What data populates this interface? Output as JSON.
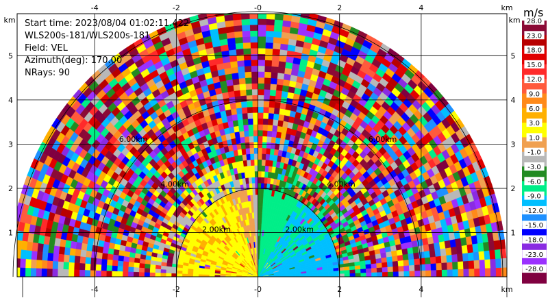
{
  "info": {
    "start_time": "Start time: 2023/08/04 01:02:11.422",
    "instrument": "WLS200s-181/WLS200s-181",
    "field": "Field: VEL",
    "azimuth": "Azimuth(deg): 170.00",
    "nrays": "NRays: 90"
  },
  "axes": {
    "x_unit": "km",
    "y_unit": "km",
    "x_ticks": [
      "-4",
      "-2",
      "-0",
      "2",
      "4"
    ],
    "x_tick_values": [
      -4,
      -2,
      0,
      2,
      4
    ],
    "y_ticks": [
      "1",
      "2",
      "3",
      "4",
      "5"
    ],
    "y_tick_values": [
      1,
      2,
      3,
      4,
      5
    ],
    "xlim": [
      -5.9,
      6.1
    ],
    "ylim": [
      0,
      5.95
    ],
    "grid": true
  },
  "range_rings": {
    "values_km": [
      2,
      4,
      6
    ],
    "labels": [
      "2.00km",
      "4.00km",
      "6.00km"
    ]
  },
  "colorbar": {
    "title": "m/s",
    "levels": [
      "28.0",
      "23.0",
      "18.0",
      "15.0",
      "12.0",
      "9.0",
      "6.0",
      "3.0",
      "1.0",
      "-1.0",
      "-3.0",
      "-6.0",
      "-9.0",
      "-12.0",
      "-15.0",
      "-18.0",
      "-23.0",
      "-28.0"
    ],
    "colors": [
      "#8b0a36",
      "#b80000",
      "#e00000",
      "#ff2a2a",
      "#ff5a3c",
      "#ff8a1a",
      "#ffb000",
      "#ffff00",
      "#f0a050",
      "#b8b8b8",
      "#228b22",
      "#00ee88",
      "#00bfff",
      "#1e90ff",
      "#0000ff",
      "#8a2be2",
      "#9b30ff",
      "#800040"
    ]
  }
}
